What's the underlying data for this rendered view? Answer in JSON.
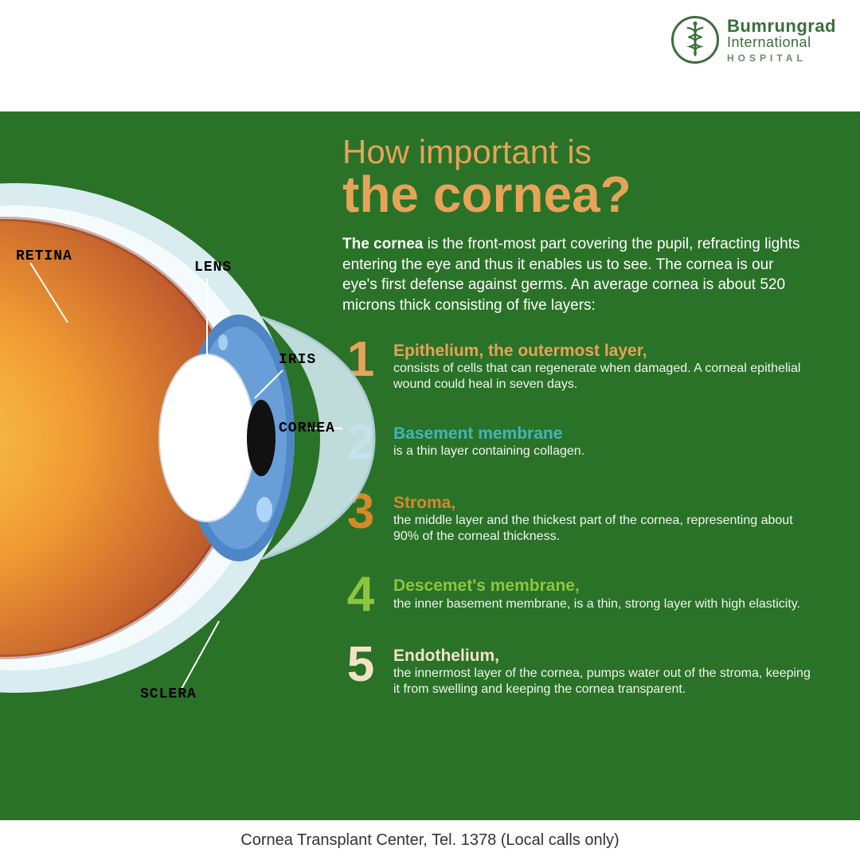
{
  "logo": {
    "line1": "Bumrungrad",
    "line2": "International",
    "line3": "HOSPITAL",
    "emblem_color": "#3b6e3c"
  },
  "colors": {
    "background": "#2a7228",
    "title": "#e6a35a",
    "footer_bg": "#ffffff",
    "footer_text": "#333333"
  },
  "title": {
    "line1": "How important is",
    "line2": "the cornea?"
  },
  "intro_html": "<b>The cornea</b> is the front-most part covering the pupil, refracting lights entering the eye and thus it enables us to see. The cornea is our eye's first defense against germs. An average cornea is about 520 microns thick consisting of five layers:",
  "layers": [
    {
      "n": "1",
      "num_color": "#e6a35a",
      "title_color": "#e6a35a",
      "title": "Epithelium, the outermost layer,",
      "desc": "consists of cells that can regenerate when damaged. A corneal epithelial wound could heal in seven days."
    },
    {
      "n": "2",
      "num_color": "#3fb7b8",
      "title_color": "#3fb7b8",
      "title": "Basement membrane",
      "desc": "is a thin layer containing collagen."
    },
    {
      "n": "3",
      "num_color": "#d6892b",
      "title_color": "#d6892b",
      "title": "Stroma,",
      "desc": "the middle layer and the thickest part of the cornea, representing about 90% of the corneal thickness."
    },
    {
      "n": "4",
      "num_color": "#8cc63f",
      "title_color": "#8cc63f",
      "title": "Descemet's membrane,",
      "desc": "the inner basement membrane, is a thin, strong layer with high elasticity."
    },
    {
      "n": "5",
      "num_color": "#f2e3c7",
      "title_color": "#f2e3c7",
      "title": "Endothelium,",
      "desc": "the innermost layer of the cornea, pumps water out of the stroma, keeping it from swelling and keeping the cornea transparent."
    }
  ],
  "eye": {
    "labels": {
      "retina": "RETINA",
      "lens": "LENS",
      "iris": "IRIS",
      "cornea": "CORNEA",
      "sclera": "SCLERA"
    },
    "palette": {
      "sclera_outer": "#d9ecef",
      "sclera_inner": "#f5fbfc",
      "muscle": "#c45a66",
      "muscle_dark": "#a2434f",
      "vitreous_out": "#b14a2b",
      "vitreous_mid": "#e07d2e",
      "vitreous_in": "#f6b33c",
      "iris": "#4f86c6",
      "iris_light": "#7fb5e8",
      "pupil": "#111111",
      "lens_fill": "#ffffff",
      "cornea": "#cfe8ee",
      "leader": "#ffffff"
    }
  },
  "footer": "Cornea Transplant Center, Tel. 1378 (Local calls only)"
}
